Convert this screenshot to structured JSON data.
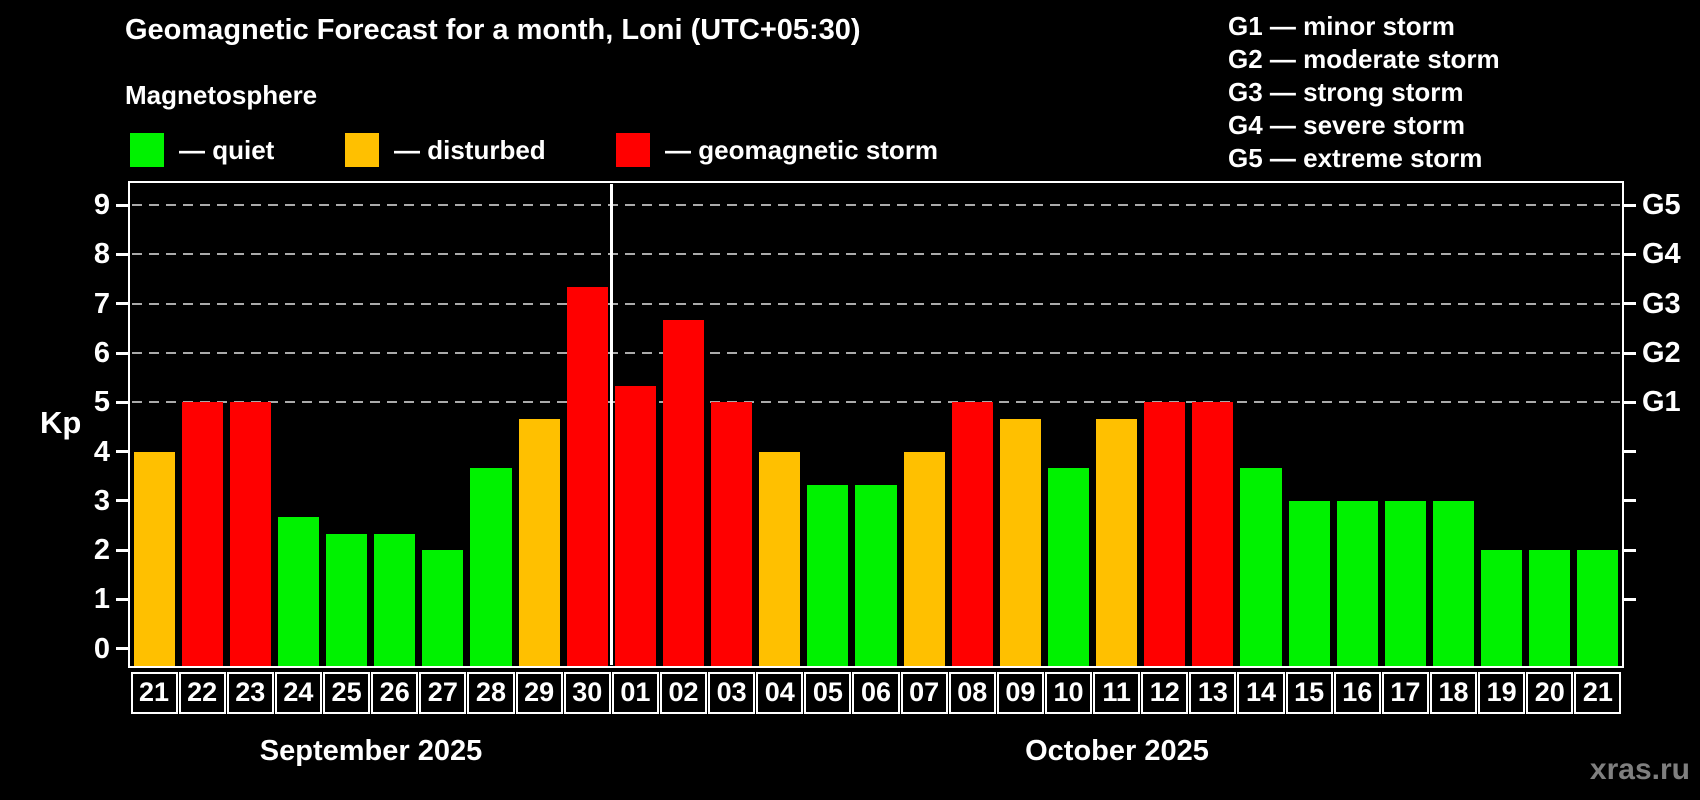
{
  "header": {
    "title": "Geomagnetic Forecast for a month, Loni (UTC+05:30)",
    "subtitle": "Magnetosphere"
  },
  "legend": {
    "items": [
      {
        "name": "quiet",
        "label": "— quiet",
        "color": "#00f200"
      },
      {
        "name": "disturbed",
        "label": "— disturbed",
        "color": "#ffc000"
      },
      {
        "name": "storm",
        "label": "— geomagnetic storm",
        "color": "#ff0000"
      }
    ]
  },
  "storm_scale_legend": {
    "items": [
      {
        "label": "G1 — minor storm"
      },
      {
        "label": "G2 — moderate storm"
      },
      {
        "label": "G3 — strong storm"
      },
      {
        "label": "G4 — severe storm"
      },
      {
        "label": "G5 — extreme storm"
      }
    ]
  },
  "watermark": "xras.ru",
  "chart_data": {
    "type": "bar",
    "ylabel": "Kp",
    "ylim": [
      -0.35,
      9.45
    ],
    "y_ticks": [
      0,
      1,
      2,
      3,
      4,
      5,
      6,
      7,
      8,
      9
    ],
    "right_ticks": [
      1,
      2,
      3,
      4,
      5,
      6,
      7,
      8,
      9
    ],
    "gridlines_at": [
      5,
      6,
      7,
      8,
      9
    ],
    "right_axis_labels": [
      {
        "kp": 5,
        "label": "G1"
      },
      {
        "kp": 6,
        "label": "G2"
      },
      {
        "kp": 7,
        "label": "G3"
      },
      {
        "kp": 8,
        "label": "G4"
      },
      {
        "kp": 9,
        "label": "G5"
      }
    ],
    "months": [
      {
        "label": "September 2025",
        "days": 10
      },
      {
        "label": "October 2025",
        "days": 21
      }
    ],
    "categories": [
      "21",
      "22",
      "23",
      "24",
      "25",
      "26",
      "27",
      "28",
      "29",
      "30",
      "01",
      "02",
      "03",
      "04",
      "05",
      "06",
      "07",
      "08",
      "09",
      "10",
      "11",
      "12",
      "13",
      "14",
      "15",
      "16",
      "17",
      "18",
      "19",
      "20",
      "21"
    ],
    "values": [
      4,
      5,
      5,
      2.67,
      2.33,
      2.33,
      2,
      3.67,
      4.67,
      7.33,
      5.33,
      6.67,
      5,
      4,
      3.33,
      3.33,
      4,
      5,
      4.67,
      3.67,
      4.67,
      5,
      5,
      3.67,
      3,
      3,
      3,
      3,
      2,
      2,
      2
    ],
    "statuses": [
      "disturbed",
      "storm",
      "storm",
      "quiet",
      "quiet",
      "quiet",
      "quiet",
      "quiet",
      "disturbed",
      "storm",
      "storm",
      "storm",
      "storm",
      "disturbed",
      "quiet",
      "quiet",
      "disturbed",
      "storm",
      "disturbed",
      "quiet",
      "disturbed",
      "storm",
      "storm",
      "quiet",
      "quiet",
      "quiet",
      "quiet",
      "quiet",
      "quiet",
      "quiet",
      "quiet"
    ],
    "colors": {
      "quiet": "#00f200",
      "disturbed": "#ffc000",
      "storm": "#ff0000"
    },
    "legend_position": "top",
    "grid": "dashed horizontal at storm levels only"
  }
}
